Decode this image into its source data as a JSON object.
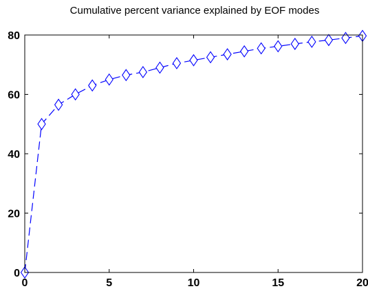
{
  "chart_data": {
    "type": "line",
    "title": "Cumulative percent variance explained by EOF modes",
    "xlabel": "",
    "ylabel": "",
    "xlim": [
      0,
      20
    ],
    "ylim": [
      0,
      80
    ],
    "xticks": [
      0,
      5,
      10,
      15,
      20
    ],
    "yticks": [
      0,
      20,
      40,
      60,
      80
    ],
    "grid": false,
    "legend": "none",
    "series": [
      {
        "line_style": "dashed",
        "marker": "diamond",
        "color": "#0000ff",
        "x": [
          0,
          1,
          2,
          3,
          4,
          5,
          6,
          7,
          8,
          9,
          10,
          11,
          12,
          13,
          14,
          15,
          16,
          17,
          18,
          19,
          20
        ],
        "y": [
          0,
          50,
          56.5,
          60,
          63,
          65,
          66.5,
          67.5,
          69,
          70.5,
          71.5,
          72.5,
          73.5,
          74.5,
          75.5,
          76.2,
          77,
          77.7,
          78.3,
          79,
          79.7
        ]
      }
    ]
  }
}
